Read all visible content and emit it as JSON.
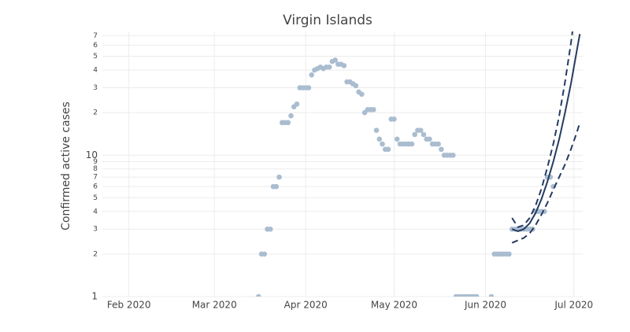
{
  "chart_data": {
    "type": "scatter",
    "title": "Virgin Islands",
    "y_label": "Confirmed active cases",
    "log_y": true,
    "grid": true,
    "ylim": [
      1,
      75
    ],
    "yticks": [
      1,
      2,
      3,
      4,
      5,
      6,
      7,
      8,
      9,
      10,
      {
        "value": 20,
        "label": "2"
      },
      {
        "value": 30,
        "label": "3"
      },
      {
        "value": 40,
        "label": "4"
      },
      {
        "value": 50,
        "label": "5"
      },
      {
        "value": 60,
        "label": "6"
      },
      {
        "value": 70,
        "label": "7"
      }
    ],
    "xlim": [
      "2020-01-23",
      "2020-07-04"
    ],
    "xticks": [
      {
        "value": "2020-02-01",
        "label": "Feb 2020"
      },
      {
        "value": "2020-03-01",
        "label": "Mar 2020"
      },
      {
        "value": "2020-04-01",
        "label": "Apr 2020"
      },
      {
        "value": "2020-05-01",
        "label": "May 2020"
      },
      {
        "value": "2020-06-01",
        "label": "Jun 2020"
      },
      {
        "value": "2020-07-01",
        "label": "Jul 2020"
      }
    ],
    "series": [
      {
        "mode": "markers",
        "color": "#aabdd0",
        "x": [
          "2020-03-16",
          "2020-03-17",
          "2020-03-18",
          "2020-03-19",
          "2020-03-20",
          "2020-03-21",
          "2020-03-22",
          "2020-03-23",
          "2020-03-24",
          "2020-03-25",
          "2020-03-26",
          "2020-03-27",
          "2020-03-28",
          "2020-03-29",
          "2020-03-30",
          "2020-03-31",
          "2020-04-01",
          "2020-04-02",
          "2020-04-03",
          "2020-04-04",
          "2020-04-05",
          "2020-04-06",
          "2020-04-07",
          "2020-04-08",
          "2020-04-09",
          "2020-04-10",
          "2020-04-11",
          "2020-04-12",
          "2020-04-13",
          "2020-04-14",
          "2020-04-15",
          "2020-04-16",
          "2020-04-17",
          "2020-04-18",
          "2020-04-19",
          "2020-04-20",
          "2020-04-21",
          "2020-04-22",
          "2020-04-23",
          "2020-04-24",
          "2020-04-25",
          "2020-04-26",
          "2020-04-27",
          "2020-04-28",
          "2020-04-29",
          "2020-04-30",
          "2020-05-01",
          "2020-05-02",
          "2020-05-03",
          "2020-05-04",
          "2020-05-05",
          "2020-05-06",
          "2020-05-07",
          "2020-05-08",
          "2020-05-09",
          "2020-05-10",
          "2020-05-11",
          "2020-05-12",
          "2020-05-13",
          "2020-05-14",
          "2020-05-15",
          "2020-05-16",
          "2020-05-17",
          "2020-05-18",
          "2020-05-19",
          "2020-05-20",
          "2020-05-21",
          "2020-05-22",
          "2020-05-23",
          "2020-05-24",
          "2020-05-25",
          "2020-05-26",
          "2020-05-27",
          "2020-05-28",
          "2020-05-29",
          "2020-06-03",
          "2020-06-04",
          "2020-06-05",
          "2020-06-06",
          "2020-06-07",
          "2020-06-08",
          "2020-06-09",
          "2020-06-10",
          "2020-06-11",
          "2020-06-12",
          "2020-06-13",
          "2020-06-14",
          "2020-06-15",
          "2020-06-16",
          "2020-06-17",
          "2020-06-18",
          "2020-06-19",
          "2020-06-20",
          "2020-06-21",
          "2020-06-22",
          "2020-06-23",
          "2020-06-24"
        ],
        "values": [
          1,
          2,
          2,
          3,
          3,
          6,
          6,
          7,
          17,
          17,
          17,
          19,
          22,
          23,
          30,
          30,
          30,
          30,
          37,
          40,
          41,
          42,
          41,
          42,
          42,
          46,
          47,
          44,
          44,
          43,
          33,
          33,
          32,
          31,
          28,
          27,
          20,
          21,
          21,
          21,
          15,
          13,
          12,
          11,
          11,
          18,
          18,
          13,
          12,
          12,
          12,
          12,
          12,
          14,
          15,
          15,
          14,
          13,
          13,
          12,
          12,
          12,
          11,
          10,
          10,
          10,
          10,
          1,
          1,
          1,
          1,
          1,
          1,
          1,
          1,
          1,
          2,
          2,
          2,
          2,
          2,
          2,
          3,
          3,
          3,
          3,
          3,
          3,
          3,
          3,
          4,
          4,
          4,
          4,
          7,
          7,
          6
        ]
      },
      {
        "mode": "lines",
        "dash": false,
        "color": "#253a63",
        "x": [
          "2020-06-10",
          "2020-06-12",
          "2020-06-14",
          "2020-06-16",
          "2020-06-18",
          "2020-06-20",
          "2020-06-22",
          "2020-06-24",
          "2020-06-26",
          "2020-06-28",
          "2020-06-30",
          "2020-07-02",
          "2020-07-03"
        ],
        "values": [
          3.0,
          2.9,
          3.0,
          3.3,
          3.9,
          4.9,
          6.5,
          9.0,
          13,
          20,
          32,
          55,
          72
        ]
      },
      {
        "mode": "lines",
        "dash": true,
        "color": "#253a63",
        "x": [
          "2020-06-10",
          "2020-06-12",
          "2020-06-14",
          "2020-06-16",
          "2020-06-18",
          "2020-06-20",
          "2020-06-22",
          "2020-06-24",
          "2020-06-26",
          "2020-06-28",
          "2020-06-30",
          "2020-07-01"
        ],
        "values": [
          3.6,
          3.1,
          3.2,
          3.6,
          4.4,
          5.8,
          8.2,
          12,
          19,
          33,
          62,
          90
        ]
      },
      {
        "mode": "lines",
        "dash": true,
        "color": "#253a63",
        "x": [
          "2020-06-10",
          "2020-06-14",
          "2020-06-16",
          "2020-06-18",
          "2020-06-20",
          "2020-06-22",
          "2020-06-24",
          "2020-06-26",
          "2020-06-28",
          "2020-06-30",
          "2020-07-02",
          "2020-07-03"
        ],
        "values": [
          2.4,
          2.6,
          2.8,
          3.2,
          3.8,
          4.6,
          5.7,
          7.0,
          8.6,
          11,
          14.5,
          17
        ]
      }
    ]
  }
}
